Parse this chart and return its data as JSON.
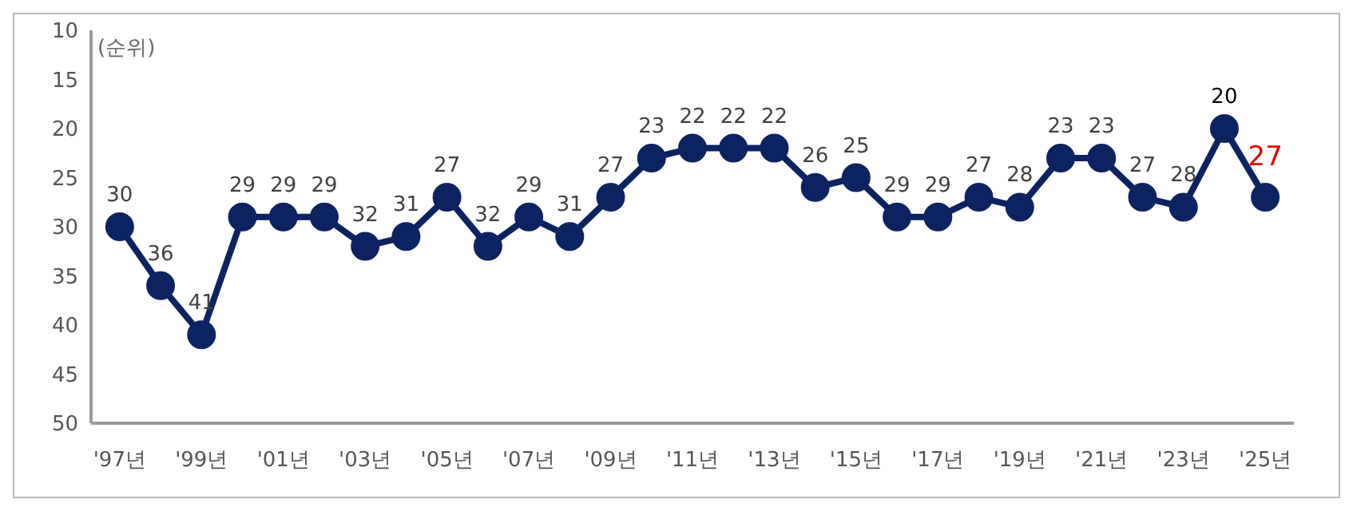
{
  "chart_data": {
    "type": "line",
    "ylabel": "(순위)",
    "categories": [
      "'97년",
      null,
      "'99년",
      null,
      "'01년",
      null,
      "'03년",
      null,
      "'05년",
      null,
      "'07년",
      null,
      "'09년",
      null,
      "'11년",
      null,
      "'13년",
      null,
      "'15년",
      null,
      "'17년",
      null,
      "'19년",
      null,
      "'21년",
      null,
      "'23년",
      null,
      "'25년"
    ],
    "series": [
      {
        "color": "#0d2260",
        "values": [
          30,
          36,
          41,
          29,
          29,
          29,
          32,
          31,
          27,
          32,
          29,
          31,
          27,
          23,
          22,
          22,
          22,
          26,
          25,
          29,
          29,
          27,
          28,
          23,
          23,
          27,
          28,
          20,
          27
        ]
      }
    ],
    "ylim": [
      50,
      10
    ],
    "yticks": [
      10,
      15,
      20,
      25,
      30,
      35,
      40,
      45,
      50
    ],
    "grid": false,
    "marker": "circle",
    "line_style": "solid",
    "data_labels": true
  }
}
